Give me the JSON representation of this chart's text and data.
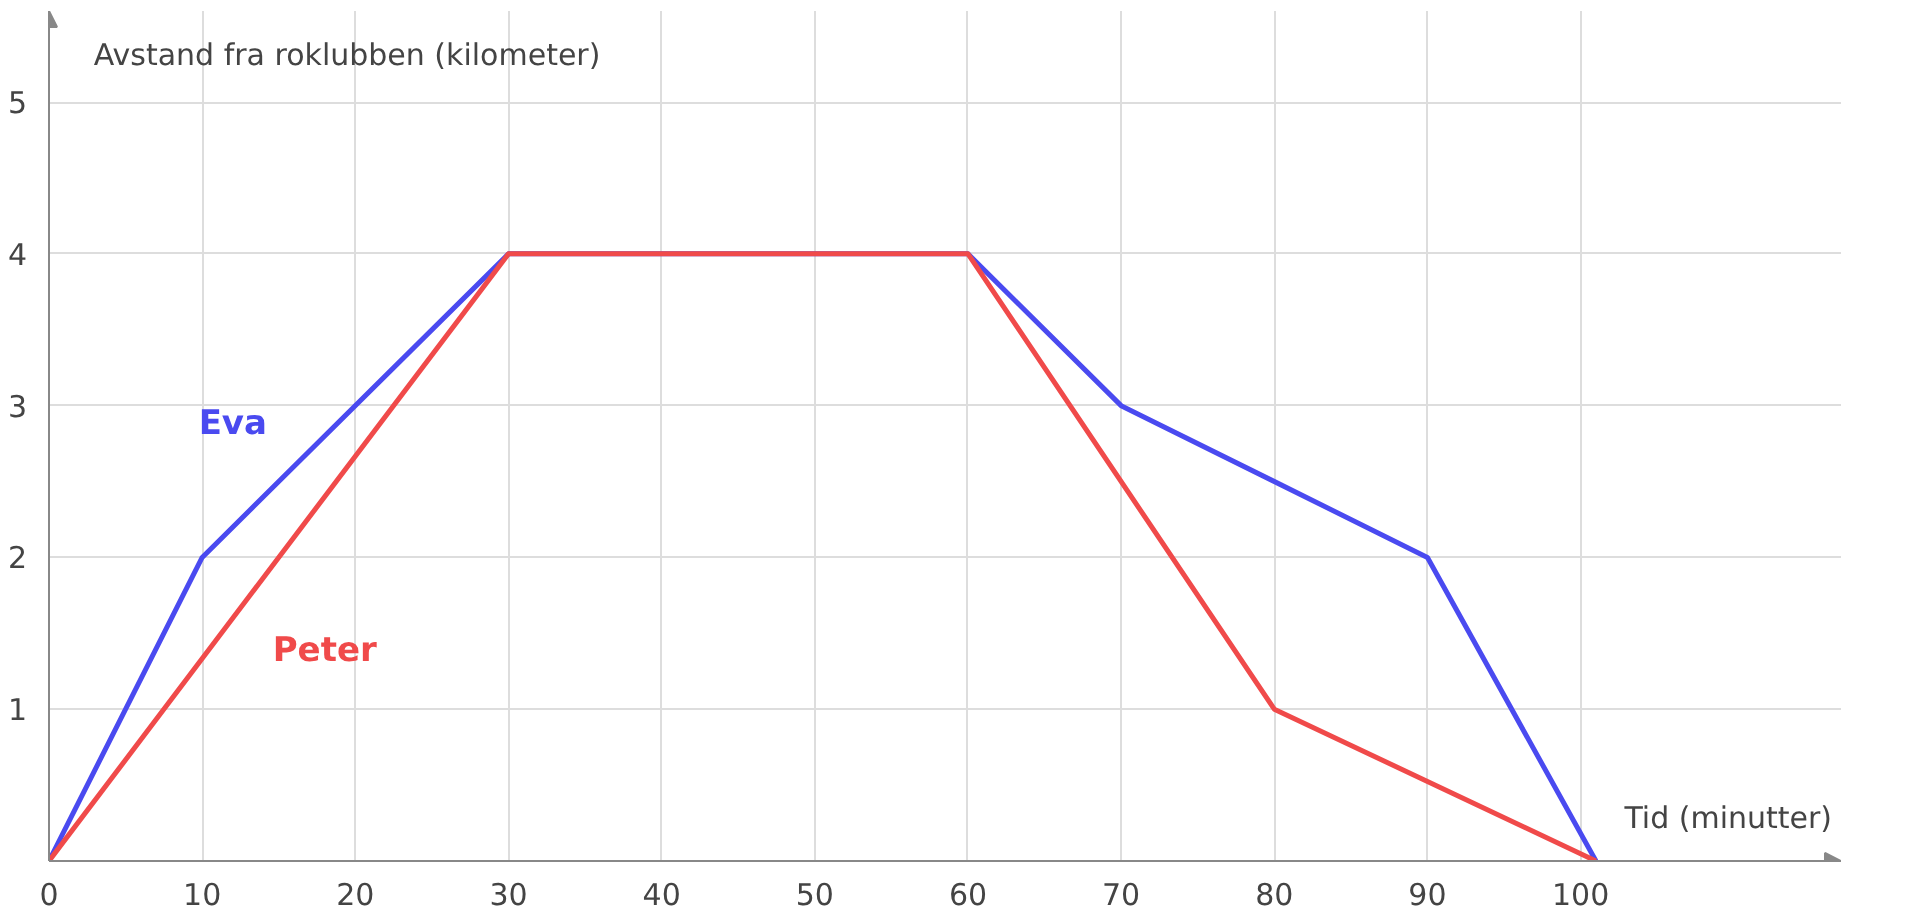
{
  "chart_data": {
    "type": "line",
    "xlabel": "Tid (minutter)",
    "ylabel": "Avstand fra roklubben (kilometer)",
    "xlim": [
      0,
      117
    ],
    "ylim": [
      0,
      5.6
    ],
    "xticks": [
      0,
      10,
      20,
      30,
      40,
      50,
      60,
      70,
      80,
      90,
      100
    ],
    "yticks": [
      1,
      2,
      3,
      4,
      5
    ],
    "grid": true,
    "marker": "none",
    "line_style": "solid",
    "series": [
      {
        "name": "Eva",
        "color": "#4a4af0",
        "x": [
          0,
          10,
          30,
          60,
          70,
          90,
          101
        ],
        "values": [
          0,
          2,
          4,
          4,
          3,
          2,
          0
        ]
      },
      {
        "name": "Peter",
        "color": "#f04a4a",
        "x": [
          0,
          30,
          60,
          80,
          101
        ],
        "values": [
          0,
          4,
          4,
          1,
          0
        ]
      }
    ]
  }
}
